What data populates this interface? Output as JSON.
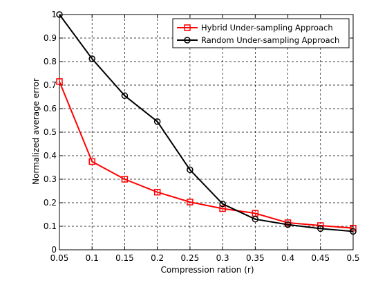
{
  "chart_data": {
    "type": "line",
    "title": "",
    "xlabel": "Compression ration (r)",
    "ylabel": "Normalized average error",
    "x": [
      0.05,
      0.1,
      0.15,
      0.2,
      0.25,
      0.3,
      0.35,
      0.4,
      0.45,
      0.5
    ],
    "xlim": [
      0.05,
      0.5
    ],
    "ylim": [
      0,
      1
    ],
    "x_tick_labels": [
      "0.05",
      "0.1",
      "0.15",
      "0.2",
      "0.25",
      "0.3",
      "0.35",
      "0.4",
      "0.45",
      "0.5"
    ],
    "y_tick_labels": [
      "0",
      "0.1",
      "0.2",
      "0.3",
      "0.4",
      "0.5",
      "0.6",
      "0.7",
      "0.8",
      "0.9",
      "1"
    ],
    "grid": true,
    "legend_position": "top-right",
    "series": [
      {
        "name": "Hybrid Under-sampling Approach",
        "color": "#ff0000",
        "marker": "square",
        "values": [
          0.715,
          0.375,
          0.3,
          0.245,
          0.203,
          0.175,
          0.155,
          0.115,
          0.103,
          0.092
        ]
      },
      {
        "name": "Random Under-sampling Approach",
        "color": "#000000",
        "marker": "circle",
        "values": [
          1.0,
          0.812,
          0.655,
          0.545,
          0.34,
          0.195,
          0.13,
          0.107,
          0.09,
          0.078
        ]
      }
    ]
  }
}
